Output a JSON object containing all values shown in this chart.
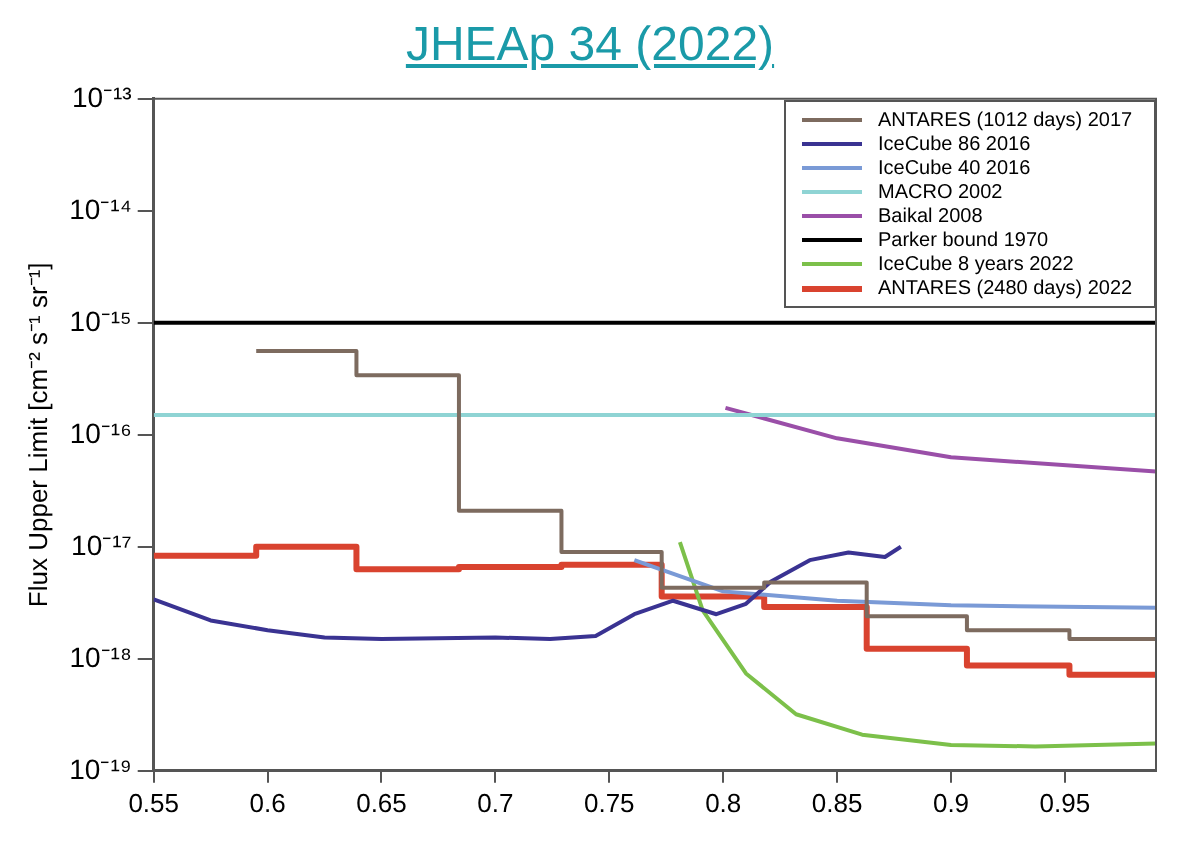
{
  "chart_data": {
    "type": "line",
    "title": "JHEAp 34 (2022)",
    "ylabel": "Flux Upper Limit [cm⁻² s⁻¹ sr⁻¹]",
    "log": "y",
    "grid": false,
    "legend": "top right",
    "marker": "none",
    "line_style": "solid",
    "xlim": [
      0.55,
      0.99
    ],
    "xticks": [
      0.55,
      0.6,
      0.65,
      0.7,
      0.75,
      0.8,
      0.85,
      0.9,
      0.95
    ],
    "ylim": [
      1e-19,
      1e-13
    ],
    "yticks": [
      {
        "value": 1e-19,
        "label": "10⁻¹⁹"
      },
      {
        "value": 1e-18,
        "label": "10⁻¹⁸"
      },
      {
        "value": 1e-17,
        "label": "10⁻¹⁷"
      },
      {
        "value": 1e-16,
        "label": "10⁻¹⁶"
      },
      {
        "value": 1e-15,
        "label": "10⁻¹⁵"
      },
      {
        "value": 1e-14,
        "label": "10⁻¹⁴"
      },
      {
        "value": 1e-13,
        "label": "10⁻¹³"
      }
    ],
    "series": [
      {
        "name": "ANTARES (1012 days) 2017",
        "type": "step",
        "color": "#7d6b5f",
        "x": [
          0.595,
          0.639,
          0.684,
          0.729,
          0.773,
          0.818,
          0.863,
          0.907,
          0.952,
          0.99
        ],
        "values": [
          5.6e-16,
          3.4e-16,
          2.1e-17,
          9e-18,
          4.3e-18,
          4.8e-18,
          2.4e-18,
          1.8e-18,
          1.5e-18,
          1.5e-18
        ]
      },
      {
        "name": "IceCube 86 2016",
        "type": "line",
        "color": "#3a3392",
        "x": [
          0.55,
          0.575,
          0.6,
          0.625,
          0.65,
          0.7,
          0.724,
          0.744,
          0.761,
          0.778,
          0.797,
          0.81,
          0.821,
          0.838,
          0.855,
          0.871,
          0.878
        ],
        "values": [
          3.4e-18,
          2.2e-18,
          1.8e-18,
          1.55e-18,
          1.5e-18,
          1.55e-18,
          1.5e-18,
          1.6e-18,
          2.5e-18,
          3.3e-18,
          2.5e-18,
          3.1e-18,
          4.9e-18,
          7.6e-18,
          8.9e-18,
          8.1e-18,
          1e-17
        ]
      },
      {
        "name": "IceCube 40 2016",
        "type": "line",
        "color": "#7a9ad6",
        "x": [
          0.761,
          0.8,
          0.85,
          0.9,
          0.99
        ],
        "values": [
          7.6e-18,
          4e-18,
          3.3e-18,
          3e-18,
          2.85e-18
        ]
      },
      {
        "name": "MACRO 2002",
        "type": "line",
        "color": "#8fd4d4",
        "x": [
          0.55,
          0.99
        ],
        "values": [
          1.5e-16,
          1.5e-16
        ]
      },
      {
        "name": "Baikal 2008",
        "type": "line",
        "color": "#9a4fa8",
        "x": [
          0.801,
          0.85,
          0.9,
          0.99
        ],
        "values": [
          1.74e-16,
          9.3e-17,
          6.3e-17,
          4.7e-17
        ]
      },
      {
        "name": "Parker bound 1970",
        "type": "line",
        "color": "#000000",
        "x": [
          0.55,
          0.99
        ],
        "values": [
          1e-15,
          1e-15
        ]
      },
      {
        "name": "IceCube 8 years 2022",
        "type": "line",
        "color": "#7cc04a",
        "x": [
          0.781,
          0.791,
          0.81,
          0.832,
          0.861,
          0.9,
          0.937,
          0.99
        ],
        "values": [
          1.1e-17,
          2.7e-18,
          7.4e-19,
          3.2e-19,
          2.1e-19,
          1.7e-19,
          1.65e-19,
          1.75e-19
        ]
      },
      {
        "name": "ANTARES (2480 days) 2022",
        "type": "step",
        "color": "#d9432f",
        "x": [
          0.55,
          0.595,
          0.639,
          0.684,
          0.729,
          0.773,
          0.818,
          0.863,
          0.907,
          0.952,
          0.99
        ],
        "values": [
          8.3e-18,
          1e-17,
          6.3e-18,
          6.6e-18,
          6.9e-18,
          3.6e-18,
          2.9e-18,
          1.23e-18,
          8.7e-19,
          7.2e-19,
          7.2e-19
        ]
      }
    ]
  }
}
